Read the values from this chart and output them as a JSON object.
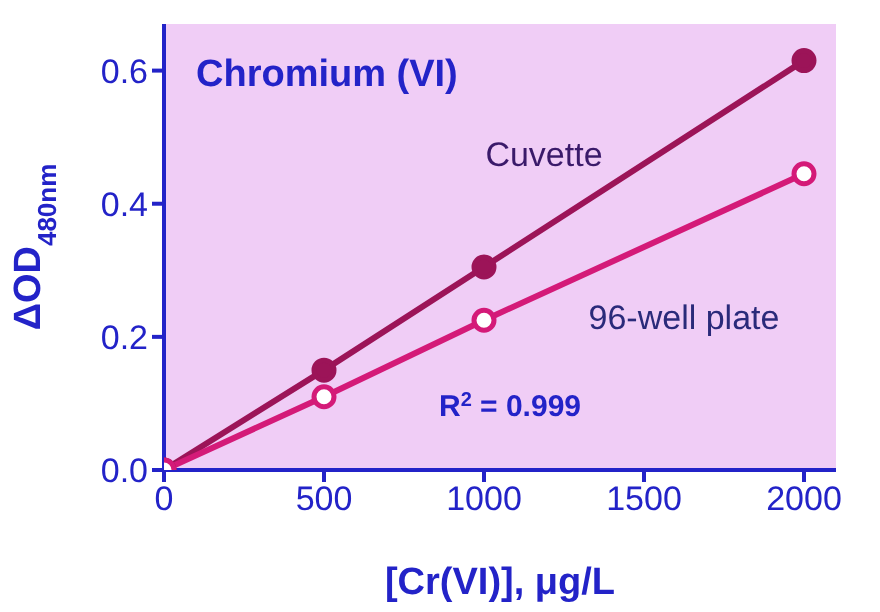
{
  "chart_data": {
    "type": "line",
    "title": "Chromium (VI)",
    "xlabel": "[Cr(VI)], μg/L",
    "ylabel": "ΔOD$_{480nm}$",
    "annotations": [
      "R$^{2}$ = 0.999"
    ],
    "x": [
      0,
      500,
      1000,
      2000
    ],
    "series": [
      {
        "name": "Cuvette",
        "color": "#9c1458",
        "values": [
          0,
          0.15,
          0.305,
          0.615
        ]
      },
      {
        "name": "96-well plate",
        "color": "#d41a78",
        "values": [
          0,
          0.11,
          0.225,
          0.445
        ]
      }
    ],
    "xlim": [
      0,
      2100
    ],
    "xticks": [
      0,
      500,
      1000,
      1500,
      2000
    ],
    "ylim": [
      0,
      0.67
    ],
    "yticks": [
      {
        "value": 0,
        "label": "0.0"
      },
      {
        "value": 0.2,
        "label": "0.2"
      },
      {
        "value": 0.4,
        "label": "0.4"
      },
      {
        "value": 0.6,
        "label": "0.6"
      }
    ],
    "grid": false,
    "marker": "circle",
    "line_style": "solid"
  }
}
